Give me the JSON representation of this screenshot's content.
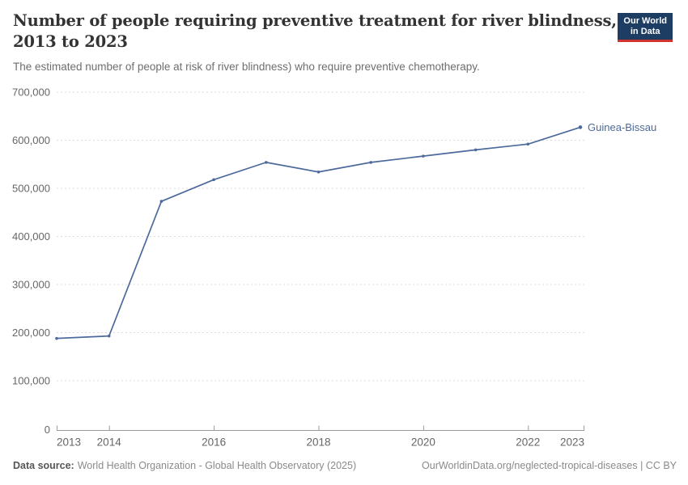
{
  "header": {
    "title_line1": "Number of people requiring preventive treatment for river blindness,",
    "title_line2": "2013 to 2023",
    "subtitle": "The estimated number of people at risk of river blindness) who require preventive chemotherapy."
  },
  "logo": {
    "line1": "Our World",
    "line2": "in Data",
    "bg_color": "#1d3d63",
    "accent_color": "#d0342c"
  },
  "chart_data": {
    "type": "line",
    "title": "Number of people requiring preventive treatment for river blindness, 2013 to 2023",
    "xlabel": "",
    "ylabel": "",
    "x": [
      2013,
      2014,
      2015,
      2016,
      2017,
      2018,
      2019,
      2020,
      2021,
      2022,
      2023
    ],
    "series": [
      {
        "name": "Guinea-Bissau",
        "color": "#4c6a9c",
        "values": [
          188000,
          193000,
          473000,
          518000,
          554000,
          534000,
          554000,
          567000,
          580000,
          592000,
          627000
        ]
      }
    ],
    "ylim": [
      0,
      700000
    ],
    "yticks": [
      0,
      100000,
      200000,
      300000,
      400000,
      500000,
      600000,
      700000
    ],
    "ytick_labels": [
      "0",
      "100,000",
      "200,000",
      "300,000",
      "400,000",
      "500,000",
      "600,000",
      "700,000"
    ],
    "xticks": [
      2013,
      2014,
      2016,
      2018,
      2020,
      2022,
      2023
    ],
    "xtick_labels": [
      "2013",
      "2014",
      "2016",
      "2018",
      "2020",
      "2022",
      "2023"
    ],
    "grid": "horizontal-dashed",
    "legend_position": "line-end-label"
  },
  "footer": {
    "source_label": "Data source:",
    "source_text": "World Health Organization - Global Health Observatory (2025)",
    "citation": "OurWorldinData.org/neglected-tropical-diseases | CC BY"
  },
  "colors": {
    "line": "#4c6a9c",
    "grid": "#dcdcdc",
    "axis": "#9a9a9a",
    "tick_label": "#666666",
    "title": "#333333",
    "subtitle": "#6e6e6e"
  }
}
